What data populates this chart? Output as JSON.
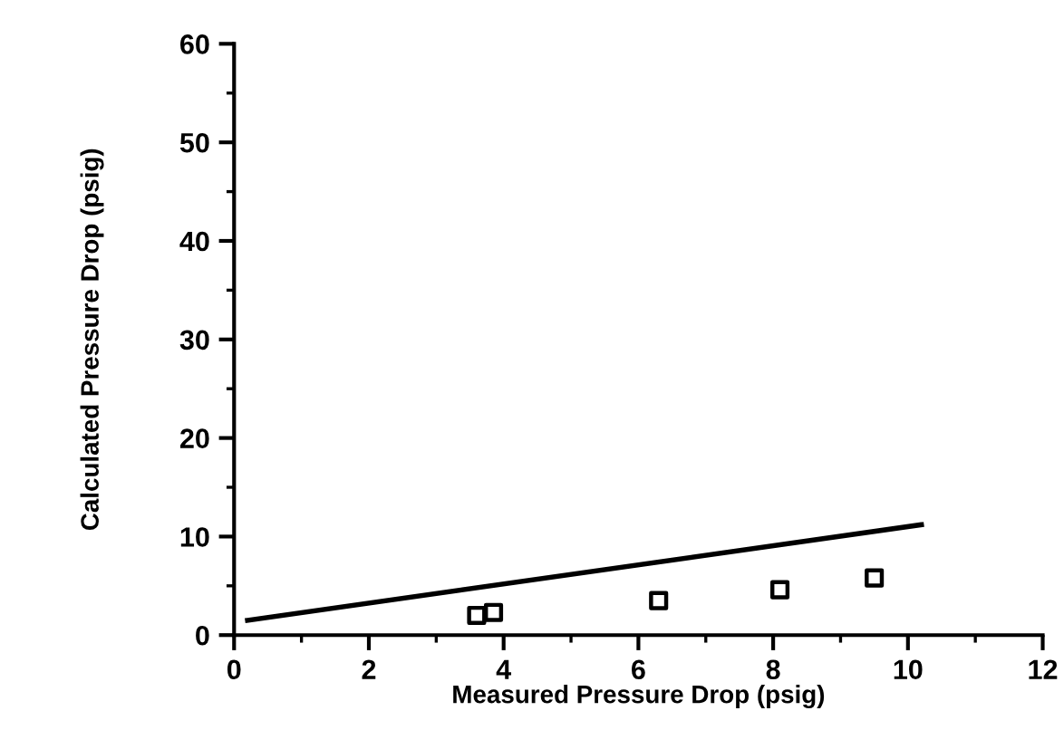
{
  "chart_data": {
    "type": "scatter",
    "xlabel": "Measured Pressure Drop (psig)",
    "ylabel": "Calculated Pressure Drop (psig)",
    "xlim": [
      0,
      12
    ],
    "ylim": [
      0,
      60
    ],
    "xticks": [
      0,
      2,
      4,
      6,
      8,
      10,
      12
    ],
    "yticks": [
      0,
      10,
      20,
      30,
      40,
      50,
      60
    ],
    "grid": false,
    "legend": false,
    "series": [
      {
        "marker": "square",
        "color": "#000000",
        "x": [
          3.6,
          3.85,
          6.3,
          8.1,
          9.5
        ],
        "values": [
          2.0,
          2.3,
          3.5,
          4.6,
          5.8
        ]
      },
      {
        "type": "line",
        "marker": "none",
        "line_style": "solid",
        "color": "#000000",
        "x": [
          0.2,
          10.2
        ],
        "values": [
          1.5,
          11.2
        ]
      }
    ]
  }
}
